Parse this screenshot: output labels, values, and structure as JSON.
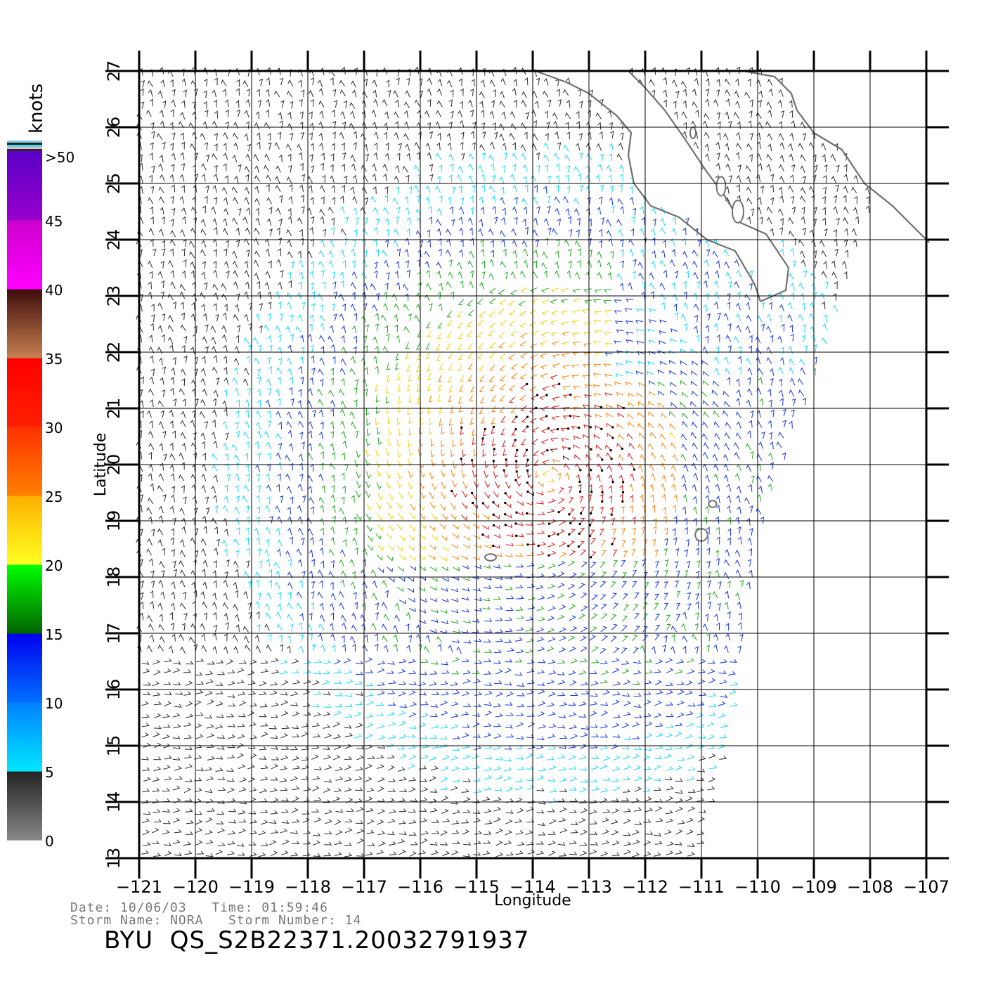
{
  "legend": {
    "unit_label": "knots",
    "ticks": [
      "0",
      "5",
      "10",
      "15",
      "20",
      "25",
      "30",
      "35",
      "40",
      "45",
      ">50"
    ],
    "bands": [
      {
        "from": 0,
        "to": 5,
        "colors": [
          "#888888",
          "#222222"
        ]
      },
      {
        "from": 5,
        "to": 10,
        "colors": [
          "#00e8ff",
          "#0080ff"
        ]
      },
      {
        "from": 10,
        "to": 15,
        "colors": [
          "#0070ff",
          "#0000ee"
        ]
      },
      {
        "from": 15,
        "to": 20,
        "colors": [
          "#006400",
          "#00ff00"
        ]
      },
      {
        "from": 20,
        "to": 25,
        "colors": [
          "#ffff20",
          "#ffb000"
        ]
      },
      {
        "from": 25,
        "to": 30,
        "colors": [
          "#ff8000",
          "#ff3000"
        ]
      },
      {
        "from": 30,
        "to": 35,
        "colors": [
          "#ff2000",
          "#ff0000"
        ]
      },
      {
        "from": 35,
        "to": 40,
        "colors": [
          "#c88050",
          "#3c0c0c"
        ]
      },
      {
        "from": 40,
        "to": 45,
        "colors": [
          "#ff00ff",
          "#cc00cc"
        ]
      },
      {
        "from": 45,
        "to": 50,
        "colors": [
          "#9900cc",
          "#5a00c8"
        ]
      }
    ]
  },
  "map": {
    "x_axis_label": "Longitude",
    "y_axis_label": "Latitude",
    "lon_ticks": [
      -121,
      -120,
      -119,
      -118,
      -117,
      -116,
      -115,
      -114,
      -113,
      -112,
      -111,
      -110,
      -109,
      -108,
      -107
    ],
    "lon_tick_labels": [
      "-121",
      "-120",
      "-119",
      "-118",
      "-117",
      "-116",
      "-115",
      "-114",
      "-113",
      "-112",
      "-111",
      "-110",
      "-109",
      "-108",
      "-107"
    ],
    "lat_ticks": [
      13,
      14,
      15,
      16,
      17,
      18,
      19,
      20,
      21,
      22,
      23,
      24,
      25,
      26,
      27
    ],
    "lat_tick_labels": [
      "13",
      "14",
      "15",
      "16",
      "17",
      "18",
      "19",
      "20",
      "21",
      "22",
      "23",
      "24",
      "25",
      "26",
      "27"
    ],
    "lon_range": [
      -121,
      -106.6
    ],
    "lat_range": [
      13,
      27
    ],
    "storm_center": {
      "lon": -113.7,
      "lat": 19.8
    },
    "storm_max_knots": 34,
    "swath_east_edge": [
      {
        "lat": 13.0,
        "lon": -111.1
      },
      {
        "lat": 16.0,
        "lon": -110.4
      },
      {
        "lat": 19.0,
        "lon": -109.9
      },
      {
        "lat": 22.0,
        "lon": -108.8
      },
      {
        "lat": 25.0,
        "lon": -107.8
      },
      {
        "lat": 27.0,
        "lon": -107.2
      }
    ],
    "coastlines": [
      {
        "name": "baja-california-pacific-coast",
        "points": [
          [
            -113.95,
            27.0
          ],
          [
            -113.4,
            26.8
          ],
          [
            -113.0,
            26.6
          ],
          [
            -112.5,
            26.2
          ],
          [
            -112.25,
            25.9
          ],
          [
            -112.3,
            25.5
          ],
          [
            -112.2,
            25.0
          ],
          [
            -111.9,
            24.6
          ],
          [
            -111.4,
            24.4
          ],
          [
            -110.9,
            24.0
          ],
          [
            -110.4,
            23.8
          ],
          [
            -110.05,
            23.2
          ],
          [
            -109.95,
            22.9
          ]
        ]
      },
      {
        "name": "baja-california-gulf-coast",
        "points": [
          [
            -109.95,
            22.9
          ],
          [
            -109.5,
            23.1
          ],
          [
            -109.45,
            23.5
          ],
          [
            -109.85,
            24.1
          ],
          [
            -110.3,
            24.3
          ],
          [
            -110.6,
            24.8
          ],
          [
            -110.9,
            25.2
          ],
          [
            -111.3,
            25.8
          ],
          [
            -111.65,
            26.3
          ],
          [
            -112.0,
            26.7
          ],
          [
            -112.3,
            27.0
          ]
        ]
      },
      {
        "name": "mainland-mexico-coast",
        "points": [
          [
            -110.25,
            27.0
          ],
          [
            -109.7,
            26.9
          ],
          [
            -109.4,
            26.6
          ],
          [
            -109.3,
            26.3
          ],
          [
            -109.0,
            25.9
          ],
          [
            -108.5,
            25.6
          ],
          [
            -108.1,
            25.0
          ],
          [
            -107.6,
            24.6
          ],
          [
            -107.3,
            24.3
          ],
          [
            -106.95,
            23.95
          ]
        ]
      }
    ],
    "islands": [
      {
        "name": "isla-espiritu-santo",
        "lon": -110.35,
        "lat": 24.5,
        "rx": 0.1,
        "ry": 0.2
      },
      {
        "name": "isla-san-jose",
        "lon": -110.65,
        "lat": 24.95,
        "rx": 0.08,
        "ry": 0.17
      },
      {
        "name": "isla-carmen",
        "lon": -111.15,
        "lat": 25.9,
        "rx": 0.05,
        "ry": 0.1
      },
      {
        "name": "isla-san-benedicto",
        "lon": -110.8,
        "lat": 19.3,
        "rx": 0.07,
        "ry": 0.06
      },
      {
        "name": "isla-socorro",
        "lon": -111.0,
        "lat": 18.75,
        "rx": 0.11,
        "ry": 0.11
      },
      {
        "name": "isla-clarion",
        "lon": -114.75,
        "lat": 18.35,
        "rx": 0.1,
        "ry": 0.06
      }
    ]
  },
  "footer": {
    "date_label": "Date:",
    "date": "10/06/03",
    "time_label": "Time:",
    "time": "01:59:46",
    "storm_name_label": "Storm Name:",
    "storm_name": "NORA",
    "storm_number_label": "Storm Number:",
    "storm_number": "14",
    "product": "BYU  QS_S2B22371.20032791937"
  }
}
